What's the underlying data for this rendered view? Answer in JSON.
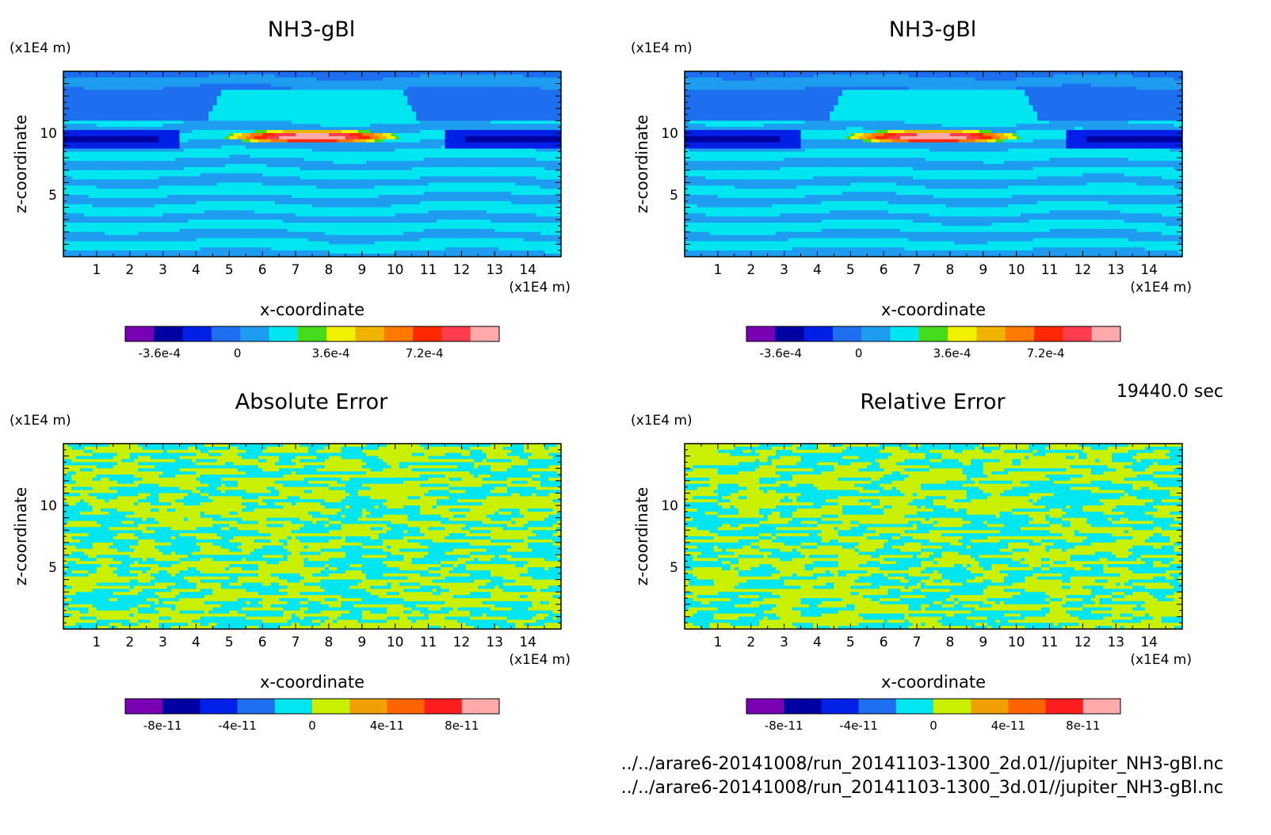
{
  "timestamp": "19440.0 sec",
  "files": [
    "../../arare6-20141008/run_20141103-1300_2d.01//jupiter_NH3-gBl.nc",
    "../../arare6-20141008/run_20141103-1300_3d.01//jupiter_NH3-gBl.nc"
  ],
  "chart_data": [
    {
      "type": "heatmap",
      "title": "NH3-gBl",
      "xlabel": "x-coordinate",
      "ylabel": "z-coordinate",
      "x_unit": "(x1E4 m)",
      "y_unit": "(x1E4 m)",
      "xlim": [
        0,
        15
      ],
      "ylim": [
        0,
        15
      ],
      "x_ticks": [
        "1",
        "2",
        "3",
        "4",
        "5",
        "6",
        "7",
        "8",
        "9",
        "10",
        "11",
        "12",
        "13",
        "14"
      ],
      "y_ticks": [
        "5",
        "10"
      ],
      "colorbar": {
        "colors": [
          "#7a00b4",
          "#0000a0",
          "#0020e8",
          "#1e6ef0",
          "#1e9cf0",
          "#00e6f0",
          "#46dc1e",
          "#f0f000",
          "#f0b400",
          "#ff7800",
          "#ff2800",
          "#ff3c4b",
          "#ffaaaa"
        ],
        "tick_labels": [
          "-3.6e-4",
          "0",
          "3.6e-4",
          "7.2e-4"
        ]
      },
      "field": "stratified",
      "anomaly": {
        "x_center": 7.5,
        "z_center": 9.7,
        "x_halfwidth": 2.7
      }
    },
    {
      "type": "heatmap",
      "title": "NH3-gBl",
      "xlabel": "x-coordinate",
      "ylabel": "z-coordinate",
      "x_unit": "(x1E4 m)",
      "y_unit": "(x1E4 m)",
      "xlim": [
        0,
        15
      ],
      "ylim": [
        0,
        15
      ],
      "x_ticks": [
        "1",
        "2",
        "3",
        "4",
        "5",
        "6",
        "7",
        "8",
        "9",
        "10",
        "11",
        "12",
        "13",
        "14"
      ],
      "y_ticks": [
        "5",
        "10"
      ],
      "colorbar": {
        "colors": [
          "#7a00b4",
          "#0000a0",
          "#0020e8",
          "#1e6ef0",
          "#1e9cf0",
          "#00e6f0",
          "#46dc1e",
          "#f0f000",
          "#f0b400",
          "#ff7800",
          "#ff2800",
          "#ff3c4b",
          "#ffaaaa"
        ],
        "tick_labels": [
          "-3.6e-4",
          "0",
          "3.6e-4",
          "7.2e-4"
        ]
      },
      "field": "stratified",
      "anomaly": {
        "x_center": 7.5,
        "z_center": 9.7,
        "x_halfwidth": 2.7
      }
    },
    {
      "type": "heatmap",
      "title": "Absolute Error",
      "xlabel": "x-coordinate",
      "ylabel": "z-coordinate",
      "x_unit": "(x1E4 m)",
      "y_unit": "(x1E4 m)",
      "xlim": [
        0,
        15
      ],
      "ylim": [
        0,
        15
      ],
      "x_ticks": [
        "1",
        "2",
        "3",
        "4",
        "5",
        "6",
        "7",
        "8",
        "9",
        "10",
        "11",
        "12",
        "13",
        "14"
      ],
      "y_ticks": [
        "5",
        "10"
      ],
      "colorbar": {
        "colors": [
          "#7a00b4",
          "#0000a0",
          "#0020e8",
          "#1e6ef0",
          "#00e6f0",
          "#c8f000",
          "#f0a000",
          "#ff6400",
          "#ff1e1e",
          "#ffaaaa"
        ],
        "tick_labels": [
          "-8e-11",
          "-4e-11",
          "0",
          "4e-11",
          "8e-11"
        ]
      },
      "field": "binary-noise",
      "field_colors": [
        "#00e6f0",
        "#c8f000"
      ]
    },
    {
      "type": "heatmap",
      "title": "Relative Error",
      "xlabel": "x-coordinate",
      "ylabel": "z-coordinate",
      "x_unit": "(x1E4 m)",
      "y_unit": "(x1E4 m)",
      "xlim": [
        0,
        15
      ],
      "ylim": [
        0,
        15
      ],
      "x_ticks": [
        "1",
        "2",
        "3",
        "4",
        "5",
        "6",
        "7",
        "8",
        "9",
        "10",
        "11",
        "12",
        "13",
        "14"
      ],
      "y_ticks": [
        "5",
        "10"
      ],
      "colorbar": {
        "colors": [
          "#7a00b4",
          "#0000a0",
          "#0020e8",
          "#1e6ef0",
          "#00e6f0",
          "#c8f000",
          "#f0a000",
          "#ff6400",
          "#ff1e1e",
          "#ffaaaa"
        ],
        "tick_labels": [
          "-8e-11",
          "-4e-11",
          "0",
          "4e-11",
          "8e-11"
        ]
      },
      "field": "binary-noise",
      "field_colors": [
        "#00e6f0",
        "#c8f000"
      ]
    }
  ]
}
